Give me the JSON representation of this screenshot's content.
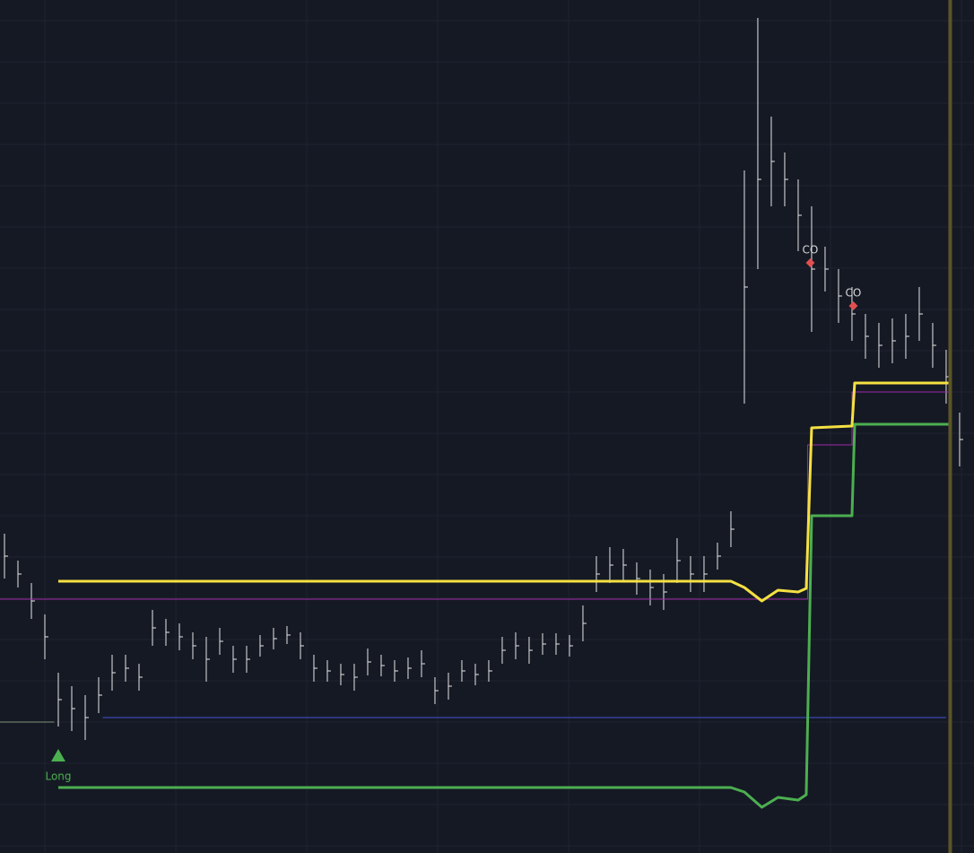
{
  "chart_data": {
    "type": "ohlc",
    "xlim": [
      -0.333,
      72.07
    ],
    "ylim": [
      0,
      95.1
    ],
    "grid": true,
    "bars": {
      "color": "#e6e6e6",
      "high": [
        35.6,
        32.6,
        30.1,
        26.6,
        20.1,
        18.6,
        17.6,
        19.6,
        22.1,
        22.1,
        21.1,
        27.1,
        26.1,
        25.6,
        24.6,
        24.1,
        25.1,
        23.1,
        23.1,
        24.3,
        25.1,
        25.3,
        24.6,
        22.1,
        21.5,
        21.1,
        21.1,
        22.8,
        22.1,
        21.5,
        21.8,
        22.6,
        19.6,
        20.1,
        21.5,
        21.1,
        21.5,
        24.1,
        24.6,
        24.1,
        24.5,
        24.5,
        24.3,
        27.6,
        33.1,
        34.1,
        33.9,
        32.4,
        31.6,
        31.1,
        35.1,
        33.1,
        33.1,
        34.6,
        38.1,
        76.1,
        93.1,
        82.1,
        78.1,
        75.1,
        72.1,
        67.6,
        65.1,
        63.1,
        60.1,
        59.1,
        59.6,
        60.1,
        63.1,
        59.1,
        56.1,
        49.1
      ],
      "low": [
        30.6,
        29.6,
        26.1,
        21.6,
        14.1,
        13.6,
        12.6,
        15.6,
        18.1,
        19.1,
        18.1,
        23.1,
        23.1,
        22.6,
        21.6,
        19.1,
        22.1,
        20.1,
        20.1,
        21.9,
        22.7,
        23.3,
        21.6,
        19.1,
        19.1,
        18.7,
        18.1,
        19.8,
        19.7,
        19.1,
        19.4,
        19.6,
        16.6,
        17.1,
        19.1,
        18.7,
        19.1,
        21.1,
        21.6,
        21.1,
        22.1,
        22.1,
        21.9,
        23.6,
        29.1,
        30.1,
        30.3,
        28.8,
        27.6,
        27.1,
        30.1,
        29.1,
        29.1,
        31.6,
        34.1,
        50.1,
        65.1,
        72.1,
        72.1,
        67.1,
        58.1,
        62.6,
        59.1,
        57.1,
        55.1,
        54.1,
        54.6,
        55.1,
        57.1,
        54.1,
        50.1,
        43.1
      ],
      "close": [
        33.1,
        31.1,
        28.1,
        24.1,
        17.1,
        16.1,
        15.1,
        17.6,
        20.1,
        20.6,
        19.6,
        25.1,
        24.6,
        24.1,
        23.1,
        21.6,
        23.6,
        21.6,
        21.6,
        23.1,
        23.9,
        24.3,
        23.1,
        20.6,
        20.3,
        19.9,
        19.6,
        21.3,
        20.9,
        20.3,
        20.6,
        21.1,
        18.1,
        18.6,
        20.3,
        19.9,
        20.3,
        22.6,
        23.1,
        22.6,
        23.3,
        23.3,
        23.1,
        25.6,
        31.1,
        32.1,
        32.1,
        30.6,
        29.6,
        29.1,
        32.6,
        31.1,
        31.1,
        33.1,
        36.1,
        63.1,
        75.1,
        77.1,
        75.1,
        71.1,
        65.1,
        65.1,
        62.1,
        60.1,
        57.6,
        56.6,
        57.1,
        57.6,
        60.1,
        56.6,
        53.1,
        46.1
      ]
    },
    "lines": [
      {
        "color": "#6b7a6b",
        "width": 1.2,
        "x": [
          -0.333,
          3.7
        ],
        "values": [
          14.6,
          14.6
        ]
      },
      {
        "color": "#3948b0",
        "width": 1.2,
        "x": [
          7.3,
          70
        ],
        "values": [
          15.1,
          15.1
        ]
      },
      {
        "color": "#a02aa8",
        "width": 1,
        "x": [
          -0.333,
          59.7,
          59.7,
          63,
          63,
          70.3
        ],
        "values": [
          28.3,
          28.3,
          45.5,
          45.5,
          51.4,
          51.4
        ]
      },
      {
        "color": "#f5e042",
        "width": 3,
        "x": [
          4,
          54,
          55,
          56.3,
          57.5,
          59,
          59.6,
          60,
          63,
          63.2,
          70.3
        ],
        "values": [
          30.3,
          30.3,
          29.6,
          28.1,
          29.3,
          29.1,
          29.5,
          47.4,
          47.6,
          52.4,
          52.4
        ]
      },
      {
        "color": "#4caf50",
        "width": 3,
        "x": [
          4,
          54,
          55,
          56.3,
          57.5,
          59,
          59.6,
          60,
          63,
          63.2,
          70.3
        ],
        "values": [
          7.3,
          7.3,
          6.8,
          5.1,
          6.2,
          5.9,
          6.5,
          37.6,
          37.6,
          47.8,
          47.8
        ]
      }
    ],
    "vline": {
      "x": 70.3,
      "color": "#5d5427"
    },
    "signals": [
      {
        "label": "Long",
        "x": 4,
        "y": 10.9,
        "color": "#4caf50"
      }
    ],
    "annotations": [
      {
        "label": "CO",
        "x": 59.9,
        "y": 65.8,
        "color": "#e05050"
      },
      {
        "label": "CO",
        "x": 63.1,
        "y": 61.0,
        "color": "#e05050"
      }
    ]
  }
}
